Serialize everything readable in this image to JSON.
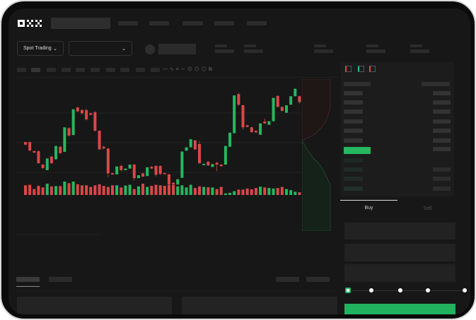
{
  "brand": {
    "logo": "OKX"
  },
  "header": {
    "market_select": "Spot Trading"
  },
  "orderbook": {
    "icons": [
      "orderbook-both-icon",
      "orderbook-bids-icon",
      "orderbook-asks-icon"
    ]
  },
  "trade": {
    "tabs": [
      "Buy",
      "Sell"
    ],
    "active_tab": "Buy",
    "slider_percent": 0
  },
  "colors": {
    "up": "#26b760",
    "down": "#d94848",
    "background": "#171717",
    "accent": "#22b35e"
  },
  "chart_data": {
    "type": "candlestick",
    "candles": [
      [
        250,
        240,
        243,
        237
      ],
      [
        250,
        218,
        250,
        215
      ],
      [
        216,
        210,
        216,
        210
      ],
      [
        215,
        170,
        218,
        168
      ],
      [
        165,
        152,
        168,
        148
      ],
      [
        144,
        188,
        130,
        190
      ],
      [
        195,
        170,
        198,
        168
      ],
      [
        185,
        235,
        182,
        238
      ],
      [
        232,
        208,
        235,
        205
      ],
      [
        213,
        305,
        210,
        332
      ],
      [
        302,
        274,
        305,
        270
      ],
      [
        276,
        373,
        274,
        415
      ],
      [
        380,
        365,
        382,
        362
      ],
      [
        370,
        358,
        373,
        352
      ],
      [
        370,
        335,
        375,
        330
      ],
      [
        358,
        352,
        360,
        350
      ],
      [
        362,
        292,
        365,
        290
      ],
      [
        292,
        222,
        294,
        220
      ],
      [
        232,
        226,
        236,
        222
      ],
      [
        225,
        132,
        228,
        118
      ],
      [
        133,
        128,
        134,
        126
      ],
      [
        128,
        158,
        126,
        160
      ],
      [
        160,
        144,
        165,
        140
      ],
      [
        144,
        150,
        140,
        152
      ],
      [
        150,
        165,
        148,
        170
      ],
      [
        165,
        114,
        167,
        104
      ],
      [
        114,
        125,
        112,
        127
      ],
      [
        132,
        120,
        134,
        118
      ],
      [
        122,
        155,
        120,
        157
      ],
      [
        157,
        150,
        158,
        148
      ],
      [
        160,
        127,
        162,
        120
      ],
      [
        160,
        130,
        162,
        125
      ],
      [
        133,
        129,
        135,
        127
      ],
      [
        128,
        91,
        130,
        88
      ],
      [
        97,
        91,
        99,
        88
      ],
      [
        90,
        110,
        88,
        112
      ],
      [
        115,
        214,
        112,
        220
      ],
      [
        217,
        230,
        215,
        232
      ],
      [
        230,
        260,
        228,
        275
      ],
      [
        256,
        222,
        258,
        220
      ],
      [
        242,
        170,
        255,
        168
      ],
      [
        163,
        168,
        160,
        172
      ],
      [
        176,
        162,
        178,
        160
      ],
      [
        156,
        167,
        155,
        168
      ],
      [
        172,
        165,
        175,
        140
      ],
      [
        165,
        159,
        167,
        158
      ],
      [
        165,
        235,
        163,
        245
      ],
      [
        232,
        285,
        230,
        290
      ],
      [
        283,
        425,
        280,
        473
      ],
      [
        430,
        390,
        435,
        386
      ],
      [
        388,
        305,
        390,
        295
      ],
      [
        313,
        307,
        315,
        305
      ],
      [
        305,
        287,
        307,
        285
      ],
      [
        292,
        286,
        294,
        284
      ],
      [
        277,
        320,
        275,
        328
      ],
      [
        327,
        320,
        338,
        318
      ],
      [
        315,
        328,
        313,
        333
      ],
      [
        328,
        416,
        326,
        418
      ],
      [
        423,
        382,
        425,
        380
      ],
      [
        382,
        367,
        384,
        365
      ],
      [
        360,
        388,
        358,
        400
      ],
      [
        390,
        422,
        388,
        425
      ],
      [
        422,
        450,
        420,
        463
      ],
      [
        422,
        400,
        424,
        393
      ],
      [
        393,
        413,
        390,
        420
      ]
    ],
    "volumes": [
      36,
      38,
      22,
      34,
      28,
      42,
      32,
      33,
      33,
      50,
      44,
      50,
      40,
      36,
      36,
      30,
      36,
      40,
      34,
      30,
      36,
      36,
      28,
      35,
      38,
      22,
      32,
      42,
      30,
      34,
      38,
      36,
      34,
      38,
      38,
      32,
      36,
      28,
      38,
      26,
      32,
      30,
      29,
      28,
      22,
      30,
      6,
      8,
      14,
      20,
      20,
      24,
      21,
      26,
      31,
      28,
      26,
      24,
      26,
      30,
      22,
      18,
      12,
      10,
      14
    ],
    "depth": {
      "asks": "cumulative sell depth",
      "bids": "cumulative buy depth"
    }
  }
}
